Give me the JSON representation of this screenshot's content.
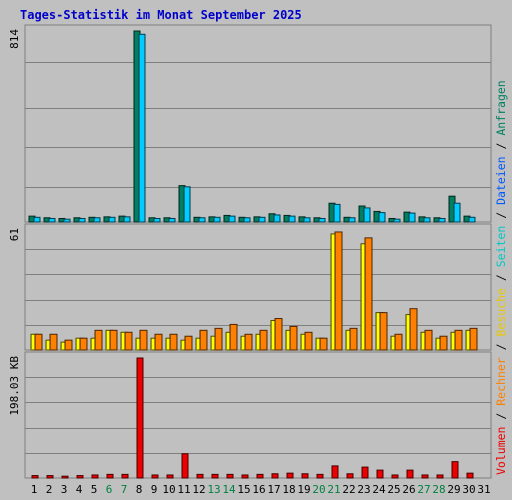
{
  "chart_data": {
    "type": "bar",
    "title": "Tages-Statistik im Monat September 2025",
    "days": [
      "1",
      "2",
      "3",
      "4",
      "5",
      "6",
      "7",
      "8",
      "9",
      "10",
      "11",
      "12",
      "13",
      "14",
      "15",
      "16",
      "17",
      "18",
      "19",
      "20",
      "21",
      "22",
      "23",
      "24",
      "25",
      "26",
      "27",
      "28",
      "29",
      "30",
      "31"
    ],
    "weekend_days": [
      "6",
      "7",
      "13",
      "14",
      "20",
      "21",
      "27",
      "28"
    ],
    "day_label_colors": {
      "weekday": "#000000",
      "weekend": "#008040"
    },
    "panels": [
      {
        "id": "top",
        "ymax_label": "814",
        "ymax": 814,
        "series": [
          {
            "name": "Anfragen",
            "color": "#008060",
            "values": [
              25,
              18,
              15,
              18,
              20,
              22,
              25,
              814,
              18,
              18,
              155,
              20,
              22,
              28,
              20,
              22,
              35,
              28,
              22,
              18,
              80,
              20,
              68,
              45,
              15,
              42,
              22,
              18,
              110,
              25,
              0
            ]
          },
          {
            "name": "Dateien",
            "color": "#00ccff",
            "values": [
              20,
              15,
              12,
              15,
              18,
              20,
              22,
              800,
              15,
              15,
              150,
              18,
              20,
              25,
              18,
              20,
              30,
              25,
              18,
              15,
              75,
              18,
              60,
              40,
              12,
              38,
              18,
              15,
              80,
              20,
              0
            ]
          }
        ]
      },
      {
        "id": "middle",
        "ymax_label": "61",
        "ymax": 61,
        "series": [
          {
            "name": "Seiten",
            "color": "#00e8e8",
            "values": [
              0,
              0,
              0,
              0,
              0,
              0,
              0,
              0,
              0,
              0,
              0,
              0,
              0,
              0,
              0,
              0,
              0,
              0,
              0,
              0,
              0,
              0,
              0,
              0,
              0,
              0,
              0,
              0,
              0,
              0,
              0
            ]
          },
          {
            "name": "Besuche",
            "color": "#ffff00",
            "values": [
              8,
              5,
              4,
              6,
              6,
              10,
              9,
              6,
              6,
              6,
              5,
              6,
              7,
              9,
              7,
              8,
              15,
              10,
              8,
              6,
              59,
              10,
              54,
              19,
              7,
              18,
              9,
              6,
              9,
              10,
              0
            ]
          },
          {
            "name": "Rechner",
            "color": "#ff8000",
            "values": [
              8,
              8,
              5,
              6,
              10,
              10,
              9,
              10,
              8,
              8,
              7,
              10,
              11,
              13,
              8,
              10,
              16,
              12,
              9,
              6,
              60,
              11,
              57,
              19,
              8,
              21,
              10,
              7,
              10,
              11,
              0
            ]
          }
        ]
      },
      {
        "id": "bottom",
        "ymax_label": "198.03 KB",
        "ymax": 198.03,
        "series": [
          {
            "name": "Volumen",
            "color": "#ee0000",
            "values": [
              4,
              4,
              3,
              4,
              5,
              6,
              6,
              198.03,
              5,
              5,
              40,
              6,
              6,
              6,
              5,
              6,
              7,
              8,
              7,
              6,
              20,
              7,
              18,
              13,
              5,
              13,
              5,
              5,
              27,
              8,
              0
            ]
          }
        ]
      }
    ],
    "legend": {
      "entries": [
        {
          "label": "Volumen",
          "color": "#ee0000"
        },
        {
          "label": "Rechner",
          "color": "#ff8000"
        },
        {
          "label": "Besuche",
          "color": "#e8c800"
        },
        {
          "label": "Seiten",
          "color": "#00c8c8"
        },
        {
          "label": "Dateien",
          "color": "#0058ff"
        },
        {
          "label": "Anfragen",
          "color": "#008060"
        }
      ],
      "separator": " / ",
      "position": "right, vertical"
    },
    "grid": true,
    "colors": {
      "background": "#c0c0c0",
      "gridline": "#808080",
      "frame": "#808080"
    }
  }
}
